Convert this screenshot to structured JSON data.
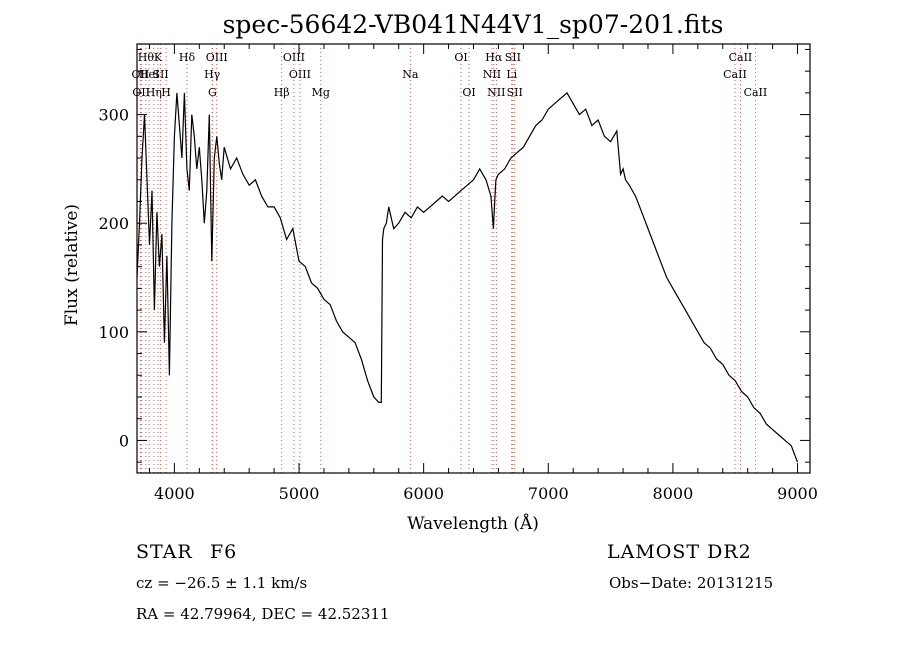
{
  "chart_data": {
    "type": "line",
    "title": "spec-56642-VB041N44V1_sp07-201.fits",
    "xlabel": "Wavelength (Å)",
    "ylabel": "Flux (relative)",
    "xlim": [
      3700,
      9100
    ],
    "ylim": [
      -30,
      365
    ],
    "xticks": [
      4000,
      5000,
      6000,
      7000,
      8000,
      9000
    ],
    "yticks": [
      0,
      100,
      200,
      300
    ],
    "grid": false,
    "series": [
      {
        "x": [
          3700,
          3720,
          3740,
          3760,
          3780,
          3800,
          3820,
          3840,
          3860,
          3880,
          3900,
          3920,
          3940,
          3960,
          3980,
          4000,
          4020,
          4040,
          4060,
          4080,
          4100,
          4120,
          4140,
          4160,
          4180,
          4200,
          4220,
          4240,
          4260,
          4280,
          4300,
          4320,
          4340,
          4360,
          4380,
          4400,
          4450,
          4500,
          4550,
          4600,
          4650,
          4700,
          4750,
          4800,
          4850,
          4900,
          4950,
          5000,
          5050,
          5100,
          5150,
          5200,
          5250,
          5300,
          5350,
          5400,
          5450,
          5500,
          5550,
          5600,
          5640,
          5660,
          5670,
          5680,
          5700,
          5720,
          5740,
          5760,
          5800,
          5850,
          5900,
          5950,
          6000,
          6050,
          6100,
          6150,
          6200,
          6250,
          6300,
          6350,
          6400,
          6450,
          6500,
          6540,
          6560,
          6570,
          6580,
          6600,
          6650,
          6700,
          6750,
          6800,
          6850,
          6900,
          6950,
          7000,
          7050,
          7100,
          7150,
          7200,
          7250,
          7300,
          7350,
          7400,
          7450,
          7500,
          7550,
          7580,
          7600,
          7620,
          7650,
          7700,
          7750,
          7800,
          7850,
          7900,
          7950,
          8000,
          8050,
          8100,
          8150,
          8200,
          8250,
          8300,
          8350,
          8400,
          8450,
          8500,
          8550,
          8600,
          8650,
          8700,
          8750,
          8800,
          8850,
          8900,
          8950,
          9000
        ],
        "values": [
          150,
          200,
          260,
          300,
          240,
          180,
          230,
          120,
          210,
          160,
          190,
          90,
          170,
          60,
          200,
          280,
          320,
          290,
          260,
          320,
          250,
          230,
          300,
          280,
          250,
          270,
          240,
          200,
          230,
          300,
          165,
          260,
          280,
          255,
          240,
          270,
          250,
          260,
          245,
          235,
          240,
          225,
          215,
          215,
          205,
          185,
          195,
          165,
          160,
          145,
          140,
          130,
          125,
          110,
          100,
          95,
          90,
          75,
          55,
          40,
          35,
          35,
          185,
          195,
          200,
          215,
          205,
          195,
          200,
          210,
          205,
          215,
          210,
          215,
          220,
          225,
          220,
          225,
          230,
          235,
          240,
          250,
          240,
          225,
          195,
          220,
          240,
          245,
          250,
          260,
          265,
          270,
          280,
          290,
          295,
          305,
          310,
          315,
          320,
          310,
          300,
          305,
          290,
          295,
          280,
          275,
          285,
          245,
          250,
          240,
          235,
          225,
          210,
          195,
          180,
          165,
          150,
          140,
          130,
          120,
          110,
          100,
          90,
          85,
          75,
          70,
          60,
          55,
          45,
          40,
          30,
          25,
          15,
          10,
          5,
          0,
          -5,
          -20
        ]
      }
    ],
    "lines": [
      {
        "x": 3727,
        "label": "OII",
        "row": 2
      },
      {
        "x": 3734,
        "label": "OII",
        "row": 3
      },
      {
        "x": 3771,
        "label": "Hθ",
        "row": 1
      },
      {
        "x": 3797,
        "label": "HeI",
        "row": 2
      },
      {
        "x": 3835,
        "label": "Hη",
        "row": 3
      },
      {
        "x": 3868,
        "label": "K",
        "row": 1
      },
      {
        "x": 3889,
        "label": "SII",
        "row": 2
      },
      {
        "x": 3933,
        "label": "H",
        "row": 3
      },
      {
        "x": 4101,
        "label": "Hδ",
        "row": 1
      },
      {
        "x": 4303,
        "label": "Hγ",
        "row": 2
      },
      {
        "x": 4305,
        "label": "G",
        "row": 3
      },
      {
        "x": 4340,
        "label": "OIII",
        "row": 1
      },
      {
        "x": 4861,
        "label": "Hβ",
        "row": 3
      },
      {
        "x": 4959,
        "label": "OIII",
        "row": 1
      },
      {
        "x": 5007,
        "label": "OIII",
        "row": 2
      },
      {
        "x": 5175,
        "label": "Mg",
        "row": 3
      },
      {
        "x": 5893,
        "label": "Na",
        "row": 2
      },
      {
        "x": 6300,
        "label": "OI",
        "row": 1
      },
      {
        "x": 6364,
        "label": "OI",
        "row": 3
      },
      {
        "x": 6548,
        "label": "NII",
        "row": 2
      },
      {
        "x": 6563,
        "label": "Hα",
        "row": 1
      },
      {
        "x": 6583,
        "label": "NII",
        "row": 3
      },
      {
        "x": 6707,
        "label": "Li",
        "row": 2
      },
      {
        "x": 6716,
        "label": "SII",
        "row": 1
      },
      {
        "x": 6731,
        "label": "SII",
        "row": 3
      },
      {
        "x": 8498,
        "label": "CaII",
        "row": 2
      },
      {
        "x": 8542,
        "label": "CaII",
        "row": 1
      },
      {
        "x": 8662,
        "label": "CaII",
        "row": 3
      }
    ]
  },
  "info": {
    "object_class": "STAR",
    "subclass": "F6",
    "survey": "LAMOST DR2",
    "redshift": "cz = −26.5 ± 1.1 km/s",
    "obs_date": "Obs−Date: 20131215",
    "coords": "RA =  42.79964, DEC =  42.52311"
  }
}
